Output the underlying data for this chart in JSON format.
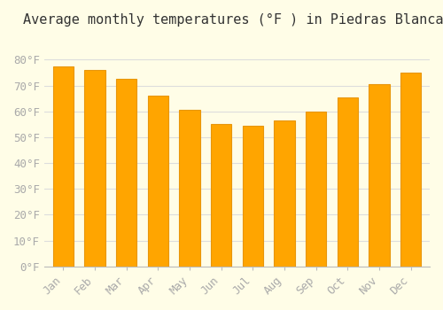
{
  "title": "Average monthly temperatures (°F ) in Piedras Blancas",
  "months": [
    "Jan",
    "Feb",
    "Mar",
    "Apr",
    "May",
    "Jun",
    "Jul",
    "Aug",
    "Sep",
    "Oct",
    "Nov",
    "Dec"
  ],
  "values": [
    77.5,
    76.0,
    72.5,
    66.0,
    60.5,
    55.0,
    54.5,
    56.5,
    60.0,
    65.5,
    70.5,
    75.0
  ],
  "bar_color": "#FFA500",
  "bar_edge_color": "#E8960A",
  "ylim": [
    0,
    90
  ],
  "yticks": [
    0,
    10,
    20,
    30,
    40,
    50,
    60,
    70,
    80
  ],
  "ytick_labels": [
    "0°F",
    "10°F",
    "20°F",
    "30°F",
    "40°F",
    "50°F",
    "60°F",
    "70°F",
    "80°F"
  ],
  "background_color": "#FFFDE7",
  "grid_color": "#DDDDDD",
  "title_fontsize": 11,
  "tick_fontsize": 9,
  "bar_width": 0.65
}
